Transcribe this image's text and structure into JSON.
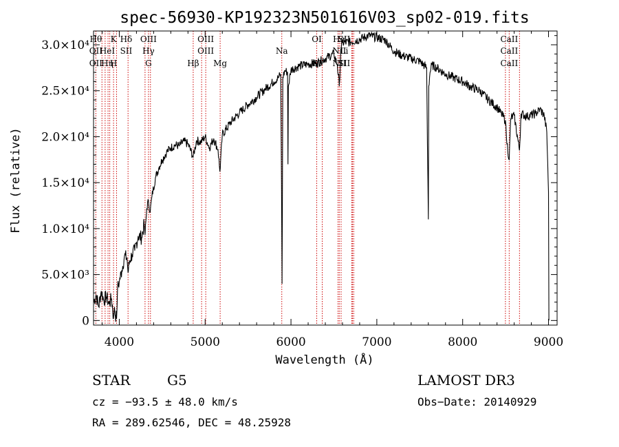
{
  "chart_data": {
    "type": "line",
    "title": "spec-56930-KP192323N501616V03_sp02-019.fits",
    "xlabel": "Wavelength (Å)",
    "ylabel": "Flux (relative)",
    "xlim": [
      3700,
      9100
    ],
    "ylim": [
      -500,
      31500
    ],
    "x_ticks": [
      4000,
      5000,
      6000,
      7000,
      8000,
      9000
    ],
    "x_tick_labels": [
      "4000",
      "5000",
      "6000",
      "7000",
      "8000",
      "9000"
    ],
    "y_ticks": [
      0,
      5000,
      10000,
      15000,
      20000,
      25000,
      30000
    ],
    "y_tick_labels": [
      "0",
      "5.0×10³",
      "1.0×10⁴",
      "1.5×10⁴",
      "2.0×10⁴",
      "2.5×10⁴",
      "3.0×10⁴"
    ],
    "series": [
      {
        "name": "spectrum",
        "x": [
          3700,
          3730,
          3760,
          3790,
          3820,
          3850,
          3880,
          3910,
          3933,
          3940,
          3968,
          3980,
          4000,
          4030,
          4060,
          4090,
          4102,
          4120,
          4150,
          4180,
          4220,
          4260,
          4290,
          4300,
          4320,
          4340,
          4360,
          4380,
          4420,
          4460,
          4500,
          4550,
          4600,
          4650,
          4700,
          4750,
          4800,
          4861,
          4900,
          4950,
          5000,
          5050,
          5100,
          5150,
          5172,
          5200,
          5300,
          5400,
          5500,
          5600,
          5700,
          5800,
          5850,
          5880,
          5890,
          5896,
          5905,
          5930,
          5960,
          5965,
          5970,
          6000,
          6100,
          6200,
          6300,
          6400,
          6500,
          6540,
          6563,
          6580,
          6600,
          6700,
          6800,
          6900,
          7000,
          7100,
          7200,
          7300,
          7400,
          7500,
          7580,
          7600,
          7605,
          7620,
          7640,
          7700,
          7800,
          7900,
          8000,
          8100,
          8200,
          8300,
          8400,
          8498,
          8510,
          8542,
          8560,
          8600,
          8662,
          8680,
          8750,
          8850,
          8900,
          8950,
          8980,
          9000,
          9005
        ],
        "y": [
          2000,
          2800,
          1500,
          3200,
          2200,
          2600,
          1800,
          2400,
          300,
          1200,
          200,
          3500,
          4200,
          5500,
          7000,
          6800,
          5200,
          6500,
          7200,
          7600,
          9200,
          9000,
          10500,
          9300,
          12200,
          13000,
          11800,
          13500,
          15500,
          16600,
          17500,
          18300,
          18800,
          19100,
          19000,
          19500,
          19200,
          17800,
          19600,
          19400,
          20000,
          18800,
          19800,
          18600,
          16200,
          20200,
          21600,
          22600,
          23500,
          24300,
          25200,
          26000,
          26400,
          26800,
          15000,
          4000,
          26500,
          27200,
          27000,
          17000,
          25500,
          27300,
          27700,
          27900,
          28000,
          28500,
          29000,
          27800,
          25500,
          29500,
          30200,
          30300,
          30600,
          31000,
          30800,
          30500,
          29300,
          28800,
          28500,
          28200,
          27500,
          11000,
          25500,
          27000,
          27800,
          27500,
          26800,
          26400,
          26000,
          25400,
          25000,
          24000,
          23200,
          21800,
          19800,
          17500,
          22000,
          22300,
          18500,
          22500,
          22200,
          22500,
          23000,
          22300,
          20500,
          14000,
          0
        ]
      }
    ],
    "line_label_groups": [
      {
        "x": 3727,
        "texts": [
          "Hθ",
          "OII",
          "OII"
        ]
      },
      {
        "x": 3860,
        "texts": [
          "",
          "HeI",
          "Hη"
        ]
      },
      {
        "x": 3933,
        "texts": [
          "K",
          "",
          "H"
        ]
      },
      {
        "x": 4080,
        "texts": [
          "Hδ",
          "SII",
          ""
        ]
      },
      {
        "x": 4340,
        "texts": [
          "OIII",
          "Hγ",
          "G"
        ]
      },
      {
        "x": 4861,
        "texts": [
          "",
          "",
          "Hβ"
        ]
      },
      {
        "x": 5007,
        "texts": [
          "OIII",
          "OIII",
          ""
        ]
      },
      {
        "x": 5175,
        "texts": [
          "",
          "",
          "Mg"
        ]
      },
      {
        "x": 5893,
        "texts": [
          "",
          "Na",
          ""
        ]
      },
      {
        "x": 6300,
        "texts": [
          "OI",
          "",
          "OI"
        ]
      },
      {
        "x": 6563,
        "texts": [
          "Hα",
          "NII",
          "NII"
        ]
      },
      {
        "x": 6620,
        "texts": [
          "SII",
          "Li",
          "SII"
        ]
      },
      {
        "x": 8542,
        "texts": [
          "CaII",
          "CaII",
          "CaII"
        ]
      }
    ],
    "line_markers_x": [
      3727,
      3798,
      3835,
      3869,
      3889,
      3933,
      3968,
      4102,
      4300,
      4340,
      4363,
      4861,
      4959,
      5007,
      5175,
      5893,
      6300,
      6364,
      6548,
      6563,
      6584,
      6708,
      6717,
      6731,
      8498,
      8542,
      8662
    ]
  },
  "info": {
    "object_class": "STAR",
    "subclass": "G5",
    "survey": "LAMOST DR3",
    "cz": "cz = −93.5 ± 48.0 km/s",
    "obs_date": "Obs−Date: 20140929",
    "radec": "RA = 289.62546, DEC =  48.25928"
  },
  "colors": {
    "marker": "#cc0000",
    "spectrum": "#000000",
    "axis": "#000000"
  }
}
